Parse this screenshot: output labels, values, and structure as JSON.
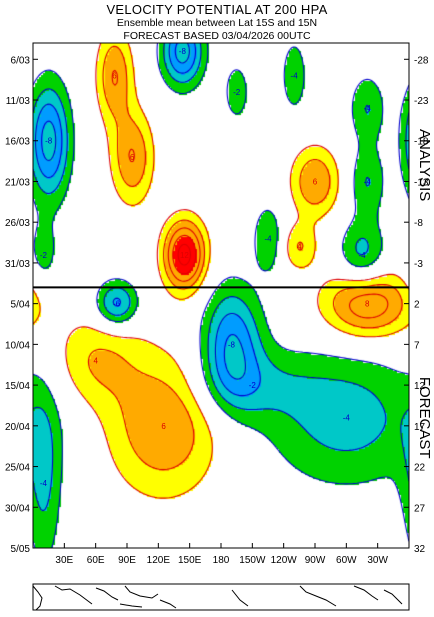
{
  "chart_data": {
    "type": "heatmap",
    "title": "VELOCITY POTENTIAL AT 200 HPA",
    "subtitle": "Ensemble mean between  Lat 15S and 15N",
    "forecast_line": "FORECAST  BASED 03/04/2026 00UTC",
    "x_tick_labels": [
      "30E",
      "60E",
      "90E",
      "120E",
      "150E",
      "180",
      "150W",
      "120W",
      "90W",
      "60W",
      "30W"
    ],
    "x_tick_longitudes": [
      30,
      60,
      90,
      120,
      150,
      180,
      210,
      240,
      270,
      300,
      330
    ],
    "xlim": [
      0,
      360
    ],
    "y_tick_labels": [
      "6/03",
      "11/03",
      "16/03",
      "21/03",
      "26/03",
      "31/03",
      "5/04",
      "10/04",
      "15/04",
      "20/04",
      "25/04",
      "30/04",
      "5/05"
    ],
    "right_tick_labels": [
      "-28",
      "-23",
      "-18",
      "-13",
      "-8",
      "-3",
      "2",
      "7",
      "12",
      "17",
      "22",
      "27",
      "32"
    ],
    "ylim_days": [
      -30,
      32
    ],
    "analysis_forecast_boundary_day": 0,
    "analysis_label": "ANALYSIS",
    "forecast_label": "FORECAST",
    "contour_interval": 2,
    "contour_labels": [
      "-2",
      "-4",
      "-6",
      "-8",
      "-10",
      "2",
      "4",
      "6",
      "8",
      "10"
    ],
    "fill_levels": [
      {
        "range": "<= -8",
        "color": "#00c8c8"
      },
      {
        "range": "-8 to -6",
        "color": "#009cff"
      },
      {
        "range": "-6 to -4",
        "color": "#00c8c8"
      },
      {
        "range": "-4 to -2",
        "color": "#00d200"
      },
      {
        "range": "-2 to 2",
        "color": "#ffffff"
      },
      {
        "range": "2 to 4",
        "color": "#ffff00"
      },
      {
        "range": "4 to 6",
        "color": "#ffaa00"
      },
      {
        "range": ">= 8",
        "color": "#ff0000"
      }
    ],
    "line_colors": {
      "negative": "#0000cc",
      "positive": "#dd0000"
    },
    "anomalies": [
      {
        "lon": 143,
        "day": -29,
        "val": -9,
        "slon": 14,
        "sday": 3
      },
      {
        "lon": 15,
        "day": -18,
        "val": -9,
        "slon": 14,
        "sday": 5
      },
      {
        "lon": 78,
        "day": -26,
        "val": 6,
        "slon": 12,
        "sday": 4
      },
      {
        "lon": 95,
        "day": -16,
        "val": 6,
        "slon": 14,
        "sday": 4
      },
      {
        "lon": 195,
        "day": -24,
        "val": -3,
        "slon": 10,
        "sday": 3
      },
      {
        "lon": 250,
        "day": -26,
        "val": -4,
        "slon": 8,
        "sday": 3
      },
      {
        "lon": 320,
        "day": -22,
        "val": -4,
        "slon": 12,
        "sday": 3
      },
      {
        "lon": 270,
        "day": -13,
        "val": 6,
        "slon": 16,
        "sday": 3
      },
      {
        "lon": 320,
        "day": -13,
        "val": -4,
        "slon": 12,
        "sday": 3
      },
      {
        "lon": 145,
        "day": -4,
        "val": 11,
        "slon": 14,
        "sday": 3
      },
      {
        "lon": 225,
        "day": -6,
        "val": -4,
        "slon": 10,
        "sday": 3
      },
      {
        "lon": 255,
        "day": -5,
        "val": 4,
        "slon": 12,
        "sday": 2
      },
      {
        "lon": 315,
        "day": -4,
        "val": -5,
        "slon": 16,
        "sday": 3
      },
      {
        "lon": 10,
        "day": -4,
        "val": -3,
        "slon": 10,
        "sday": 3
      },
      {
        "lon": 80,
        "day": 2,
        "val": -7,
        "slon": 14,
        "sday": 2
      },
      {
        "lon": 190,
        "day": 7,
        "val": -8,
        "slon": 20,
        "sday": 5
      },
      {
        "lon": 320,
        "day": 2,
        "val": 8,
        "slon": 30,
        "sday": 3
      },
      {
        "lon": 125,
        "day": 17,
        "val": 6,
        "slon": 38,
        "sday": 6
      },
      {
        "lon": 60,
        "day": 9,
        "val": 4,
        "slon": 30,
        "sday": 4
      },
      {
        "lon": 300,
        "day": 16,
        "val": -5,
        "slon": 55,
        "sday": 6
      },
      {
        "lon": 210,
        "day": 12,
        "val": -3,
        "slon": 40,
        "sday": 3
      },
      {
        "lon": 10,
        "day": 24,
        "val": -4,
        "slon": 12,
        "sday": 8
      }
    ],
    "map_strip": true
  }
}
